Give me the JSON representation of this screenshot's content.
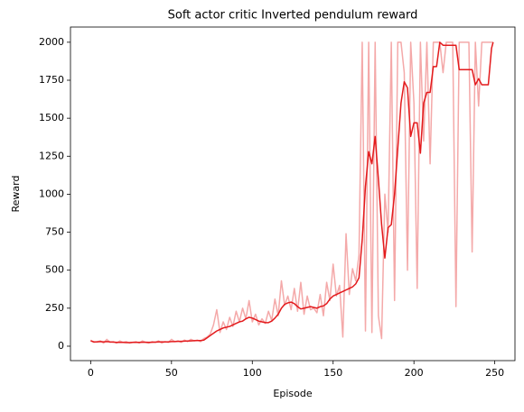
{
  "chart_data": {
    "type": "line",
    "title": "Soft actor critic Inverted pendulum reward",
    "xlabel": "Episode",
    "ylabel": "Reward",
    "x": [
      0,
      2,
      4,
      6,
      8,
      10,
      12,
      14,
      16,
      18,
      20,
      22,
      24,
      26,
      28,
      30,
      32,
      34,
      36,
      38,
      40,
      42,
      44,
      46,
      48,
      50,
      52,
      54,
      56,
      58,
      60,
      62,
      64,
      66,
      68,
      70,
      72,
      74,
      76,
      78,
      80,
      82,
      84,
      86,
      88,
      90,
      92,
      94,
      96,
      98,
      100,
      102,
      104,
      106,
      108,
      110,
      112,
      114,
      116,
      118,
      120,
      122,
      124,
      126,
      128,
      130,
      132,
      134,
      136,
      138,
      140,
      142,
      144,
      146,
      148,
      150,
      152,
      154,
      156,
      158,
      160,
      162,
      164,
      166,
      168,
      170,
      172,
      174,
      176,
      178,
      180,
      182,
      184,
      186,
      188,
      190,
      192,
      194,
      196,
      198,
      200,
      202,
      204,
      206,
      208,
      210,
      212,
      214,
      216,
      218,
      220,
      222,
      224,
      226,
      228,
      230,
      232,
      234,
      236,
      238,
      240,
      242,
      244,
      246,
      248,
      249
    ],
    "series": [
      {
        "color": "#f4a9a9",
        "values": [
          40,
          25,
          30,
          35,
          20,
          45,
          25,
          30,
          20,
          35,
          25,
          30,
          20,
          25,
          30,
          20,
          35,
          25,
          20,
          30,
          25,
          35,
          20,
          30,
          25,
          45,
          30,
          35,
          25,
          40,
          30,
          45,
          35,
          40,
          30,
          50,
          60,
          80,
          140,
          240,
          90,
          160,
          110,
          190,
          130,
          230,
          160,
          250,
          180,
          300,
          160,
          210,
          140,
          180,
          150,
          230,
          170,
          310,
          200,
          430,
          270,
          330,
          240,
          380,
          230,
          420,
          210,
          330,
          240,
          250,
          220,
          340,
          200,
          420,
          300,
          540,
          330,
          400,
          60,
          740,
          340,
          510,
          430,
          600,
          2000,
          100,
          2000,
          90,
          2000,
          200,
          50,
          1000,
          750,
          2000,
          300,
          2000,
          2000,
          1800,
          500,
          2000,
          1600,
          380,
          2000,
          1350,
          2000,
          1200,
          2000,
          2000,
          2000,
          1800,
          2000,
          2000,
          2000,
          260,
          2000,
          2000,
          2000,
          2000,
          620,
          2000,
          1580,
          2000,
          2000,
          2000,
          2000,
          2000
        ]
      },
      {
        "color": "#e31a1c",
        "values": [
          35,
          28,
          28,
          30,
          28,
          30,
          28,
          27,
          25,
          25,
          25,
          24,
          24,
          25,
          25,
          25,
          26,
          26,
          25,
          26,
          27,
          28,
          28,
          28,
          28,
          30,
          30,
          32,
          32,
          33,
          34,
          35,
          36,
          37,
          37,
          40,
          55,
          70,
          85,
          100,
          110,
          120,
          125,
          130,
          140,
          150,
          160,
          165,
          180,
          190,
          185,
          175,
          165,
          160,
          155,
          155,
          165,
          185,
          210,
          250,
          275,
          285,
          290,
          280,
          260,
          245,
          250,
          255,
          260,
          255,
          250,
          260,
          265,
          280,
          310,
          330,
          340,
          350,
          360,
          370,
          380,
          390,
          410,
          450,
          700,
          1050,
          1280,
          1200,
          1380,
          1100,
          800,
          580,
          780,
          800,
          1000,
          1300,
          1600,
          1740,
          1700,
          1380,
          1470,
          1470,
          1270,
          1600,
          1670,
          1670,
          1840,
          1840,
          2000,
          1980,
          1980,
          1980,
          1980,
          1980,
          1820,
          1820,
          1820,
          1820,
          1820,
          1720,
          1760,
          1720,
          1720,
          1720,
          1960,
          2000
        ]
      }
    ],
    "xlim": [
      -12.5,
      262.5
    ],
    "xticks": [
      0,
      50,
      100,
      150,
      200,
      250
    ],
    "ylim": [
      -95,
      2100
    ],
    "yticks": [
      0,
      250,
      500,
      750,
      1000,
      1250,
      1500,
      1750,
      2000
    ]
  }
}
